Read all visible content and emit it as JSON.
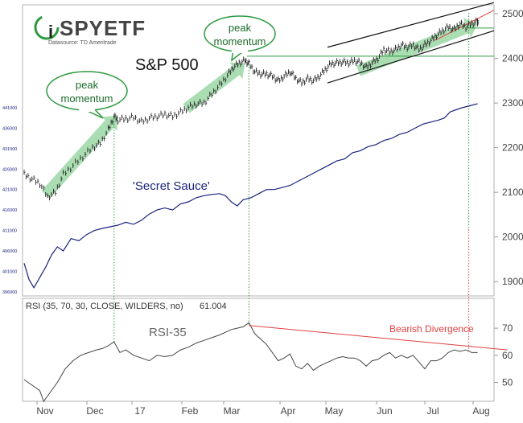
{
  "logo": {
    "brand": "iSPYETF",
    "datasource": "Datasource: TD Ameritrade"
  },
  "chart_data": [
    {
      "type": "line",
      "title": "S&P 500",
      "sub_series_label": "'Secret Sauce'",
      "x_tick_labels": [
        "Nov",
        "Dec",
        "17",
        "Feb",
        "Mar",
        "Apr",
        "May",
        "Jun",
        "Jul",
        "Aug"
      ],
      "right_axis": {
        "ticks": [
          1900,
          2000,
          2100,
          2200,
          2300,
          2400,
          2500
        ],
        "range": [
          1850,
          2520
        ]
      },
      "left_axis": {
        "ticks": [
          396000,
          401000,
          406000,
          411000,
          416000,
          421000,
          426000,
          431000,
          436000,
          441000
        ]
      },
      "annotations": {
        "peak1": "peak momentum",
        "peak2": "peak momentum"
      },
      "series": [
        {
          "name": "S&P 500",
          "axis": "right",
          "color": "#222222",
          "points": [
            [
              0,
              2140
            ],
            [
              8,
              2130
            ],
            [
              16,
              2120
            ],
            [
              24,
              2090
            ],
            [
              32,
              2100
            ],
            [
              40,
              2140
            ],
            [
              50,
              2160
            ],
            [
              60,
              2180
            ],
            [
              70,
              2200
            ],
            [
              78,
              2210
            ],
            [
              86,
              2240
            ],
            [
              92,
              2270
            ],
            [
              96,
              2262
            ],
            [
              104,
              2265
            ],
            [
              112,
              2268
            ],
            [
              120,
              2258
            ],
            [
              128,
              2266
            ],
            [
              136,
              2270
            ],
            [
              144,
              2275
            ],
            [
              152,
              2270
            ],
            [
              160,
              2280
            ],
            [
              168,
              2290
            ],
            [
              176,
              2298
            ],
            [
              184,
              2300
            ],
            [
              192,
              2320
            ],
            [
              200,
              2340
            ],
            [
              208,
              2362
            ],
            [
              214,
              2380
            ],
            [
              220,
              2390
            ],
            [
              226,
              2395
            ],
            [
              230,
              2388
            ],
            [
              236,
              2370
            ],
            [
              242,
              2365
            ],
            [
              248,
              2365
            ],
            [
              254,
              2360
            ],
            [
              260,
              2350
            ],
            [
              266,
              2360
            ],
            [
              272,
              2370
            ],
            [
              278,
              2355
            ],
            [
              284,
              2345
            ],
            [
              290,
              2355
            ],
            [
              296,
              2350
            ],
            [
              302,
              2360
            ],
            [
              308,
              2375
            ],
            [
              314,
              2388
            ],
            [
              320,
              2390
            ],
            [
              326,
              2392
            ],
            [
              332,
              2390
            ],
            [
              338,
              2395
            ],
            [
              344,
              2390
            ],
            [
              350,
              2380
            ],
            [
              356,
              2390
            ],
            [
              362,
              2400
            ],
            [
              368,
              2420
            ],
            [
              374,
              2415
            ],
            [
              380,
              2420
            ],
            [
              386,
              2430
            ],
            [
              392,
              2425
            ],
            [
              398,
              2430
            ],
            [
              404,
              2420
            ],
            [
              410,
              2430
            ],
            [
              416,
              2440
            ],
            [
              422,
              2452
            ],
            [
              428,
              2462
            ],
            [
              434,
              2470
            ],
            [
              440,
              2465
            ],
            [
              446,
              2478
            ],
            [
              452,
              2470
            ],
            [
              458,
              2478
            ],
            [
              464,
              2482
            ]
          ]
        },
        {
          "name": "'Secret Sauce'",
          "axis": "left",
          "color": "#1a237e",
          "points": [
            [
              0,
              403000
            ],
            [
              5,
              399000
            ],
            [
              10,
              397000
            ],
            [
              16,
              399500
            ],
            [
              22,
              402000
            ],
            [
              28,
              405000
            ],
            [
              34,
              407000
            ],
            [
              40,
              406000
            ],
            [
              48,
              409000
            ],
            [
              56,
              408500
            ],
            [
              64,
              410000
            ],
            [
              72,
              411000
            ],
            [
              80,
              411500
            ],
            [
              90,
              412000
            ],
            [
              96,
              412300
            ],
            [
              104,
              413000
            ],
            [
              112,
              412500
            ],
            [
              120,
              413500
            ],
            [
              128,
              415000
            ],
            [
              136,
              416000
            ],
            [
              144,
              416500
            ],
            [
              152,
              416000
            ],
            [
              160,
              417500
            ],
            [
              168,
              418000
            ],
            [
              176,
              419000
            ],
            [
              184,
              419500
            ],
            [
              192,
              419800
            ],
            [
              200,
              420000
            ],
            [
              206,
              419500
            ],
            [
              212,
              418000
            ],
            [
              218,
              417000
            ],
            [
              224,
              418500
            ],
            [
              232,
              419000
            ],
            [
              240,
              420000
            ],
            [
              248,
              421000
            ],
            [
              256,
              421000
            ],
            [
              264,
              421500
            ],
            [
              272,
              422000
            ],
            [
              280,
              423000
            ],
            [
              288,
              424000
            ],
            [
              296,
              425000
            ],
            [
              304,
              426000
            ],
            [
              312,
              427000
            ],
            [
              320,
              428000
            ],
            [
              328,
              428500
            ],
            [
              336,
              430000
            ],
            [
              344,
              430500
            ],
            [
              352,
              431500
            ],
            [
              360,
              432000
            ],
            [
              368,
              433000
            ],
            [
              376,
              433500
            ],
            [
              384,
              434500
            ],
            [
              392,
              435000
            ],
            [
              400,
              436000
            ],
            [
              408,
              437000
            ],
            [
              416,
              437500
            ],
            [
              424,
              438000
            ],
            [
              430,
              438500
            ],
            [
              436,
              440000
            ],
            [
              442,
              440500
            ],
            [
              448,
              441000
            ],
            [
              456,
              441500
            ],
            [
              464,
              442000
            ]
          ]
        }
      ],
      "channel": {
        "upper": [
          [
            368,
            2425
          ],
          [
            590,
            2525
          ]
        ],
        "lower": [
          [
            368,
            2345
          ],
          [
            590,
            2462
          ]
        ]
      },
      "horizontal_levels": [
        2405,
        2468
      ]
    },
    {
      "type": "line",
      "title": "RSI-35",
      "indicator_label": "RSI (35, 70, 30, CLOSE, WILDERS, no)",
      "indicator_value": "61.004",
      "annotation": "Bearish Divergence",
      "axis": {
        "ticks": [
          50,
          60,
          70
        ],
        "range": [
          40,
          77
        ]
      },
      "divergence_line": [
        [
          230,
          71
        ],
        [
          474,
          62
        ]
      ],
      "series": [
        {
          "name": "RSI-35",
          "color": "#444444",
          "points": [
            [
              0,
              51
            ],
            [
              8,
              49
            ],
            [
              16,
              47
            ],
            [
              20,
              43
            ],
            [
              26,
              46
            ],
            [
              34,
              50
            ],
            [
              42,
              55
            ],
            [
              50,
              58
            ],
            [
              58,
              60
            ],
            [
              66,
              61
            ],
            [
              74,
              62
            ],
            [
              80,
              62.5
            ],
            [
              86,
              63.5
            ],
            [
              92,
              65
            ],
            [
              98,
              61
            ],
            [
              104,
              62
            ],
            [
              112,
              60
            ],
            [
              120,
              59
            ],
            [
              128,
              58
            ],
            [
              136,
              60
            ],
            [
              144,
              59.5
            ],
            [
              152,
              60
            ],
            [
              160,
              62
            ],
            [
              168,
              63
            ],
            [
              176,
              64.5
            ],
            [
              184,
              65.5
            ],
            [
              192,
              66.5
            ],
            [
              200,
              67.5
            ],
            [
              206,
              68.5
            ],
            [
              212,
              69.5
            ],
            [
              218,
              70
            ],
            [
              224,
              70.5
            ],
            [
              230,
              72
            ],
            [
              236,
              68
            ],
            [
              242,
              66
            ],
            [
              248,
              64
            ],
            [
              254,
              61
            ],
            [
              260,
              58
            ],
            [
              266,
              59
            ],
            [
              272,
              60.5
            ],
            [
              278,
              56
            ],
            [
              284,
              55
            ],
            [
              290,
              57
            ],
            [
              296,
              54.5
            ],
            [
              302,
              56
            ],
            [
              308,
              57
            ],
            [
              314,
              58
            ],
            [
              320,
              59
            ],
            [
              326,
              59.5
            ],
            [
              332,
              59
            ],
            [
              338,
              59
            ],
            [
              344,
              58
            ],
            [
              350,
              56
            ],
            [
              356,
              58
            ],
            [
              362,
              58.5
            ],
            [
              368,
              60
            ],
            [
              374,
              61
            ],
            [
              380,
              59
            ],
            [
              386,
              60
            ],
            [
              392,
              59
            ],
            [
              398,
              60
            ],
            [
              404,
              57.5
            ],
            [
              410,
              55
            ],
            [
              416,
              58
            ],
            [
              422,
              58
            ],
            [
              428,
              59
            ],
            [
              434,
              61
            ],
            [
              440,
              62
            ],
            [
              446,
              61.5
            ],
            [
              452,
              62
            ],
            [
              458,
              61
            ],
            [
              464,
              61
            ]
          ]
        }
      ]
    }
  ]
}
